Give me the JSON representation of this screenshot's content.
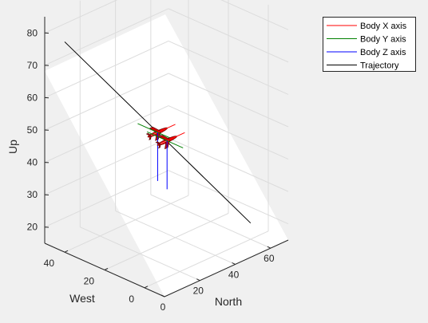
{
  "chart_data": {
    "type": "line",
    "projection": "3d",
    "xlabel": "North",
    "ylabel": "West",
    "zlabel": "Up",
    "xlim": [
      0,
      70
    ],
    "ylim": [
      -10,
      50
    ],
    "zlim": [
      15,
      85
    ],
    "xticks": [
      "0",
      "20",
      "40",
      "60"
    ],
    "yticks": [
      "0",
      "20",
      "40"
    ],
    "zticks": [
      "20",
      "30",
      "40",
      "50",
      "60",
      "70",
      "80"
    ],
    "grid": true,
    "legend_location": "top-right",
    "series": [
      {
        "name": "Body X axis",
        "color": "#ff0000"
      },
      {
        "name": "Body Y axis",
        "color": "#008000"
      },
      {
        "name": "Body Z axis",
        "color": "#0000ff"
      },
      {
        "name": "Trajectory",
        "color": "#000000"
      }
    ],
    "trajectory": [
      {
        "north": 0,
        "west": 40,
        "up": 80
      },
      {
        "north": 30,
        "west": 20,
        "up": 50
      },
      {
        "north": 60,
        "west": 0,
        "up": 20
      }
    ],
    "aircraft": [
      {
        "north": 30,
        "west": 20,
        "up": 50,
        "body_x_len": 10,
        "body_y_len": 10,
        "body_z_len": 10
      },
      {
        "north": 32.5,
        "west": 17.5,
        "up": 47.5,
        "body_x_len": 10,
        "body_y_len": 10,
        "body_z_len": 10
      }
    ]
  }
}
